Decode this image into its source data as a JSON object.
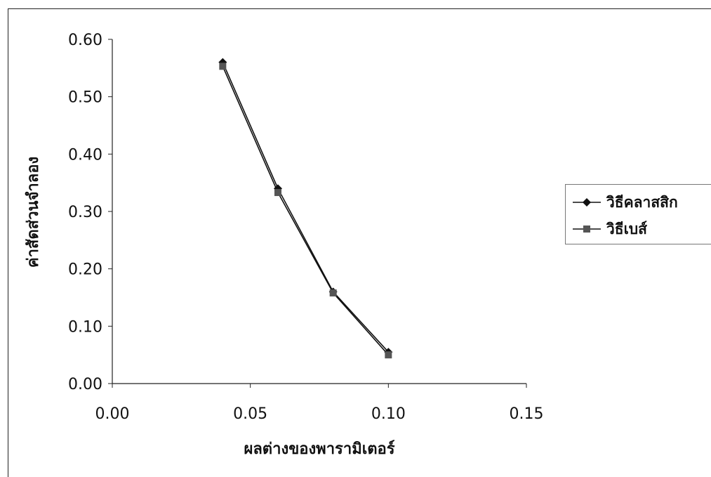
{
  "chart_data": {
    "type": "line",
    "title": "",
    "xlabel": "ผลต่างของพารามิเตอร์",
    "ylabel": "ค่าสัดส่วนจำลอง",
    "xlim": [
      0.0,
      0.15
    ],
    "ylim": [
      0.0,
      0.6
    ],
    "x_ticks": [
      "0.00",
      "0.05",
      "0.10",
      "0.15"
    ],
    "y_ticks": [
      "0.00",
      "0.10",
      "0.20",
      "0.30",
      "0.40",
      "0.50",
      "0.60"
    ],
    "grid": false,
    "legend_position": "right",
    "series": [
      {
        "name": "วิธีคลาสสิก",
        "marker": "diamond",
        "color": "#111111",
        "x": [
          0.04,
          0.06,
          0.08,
          0.1
        ],
        "y": [
          0.56,
          0.34,
          0.16,
          0.055
        ]
      },
      {
        "name": "วิธีเบส์",
        "marker": "square",
        "color": "#111111",
        "x": [
          0.04,
          0.06,
          0.08,
          0.1
        ],
        "y": [
          0.553,
          0.333,
          0.158,
          0.05
        ]
      }
    ]
  }
}
